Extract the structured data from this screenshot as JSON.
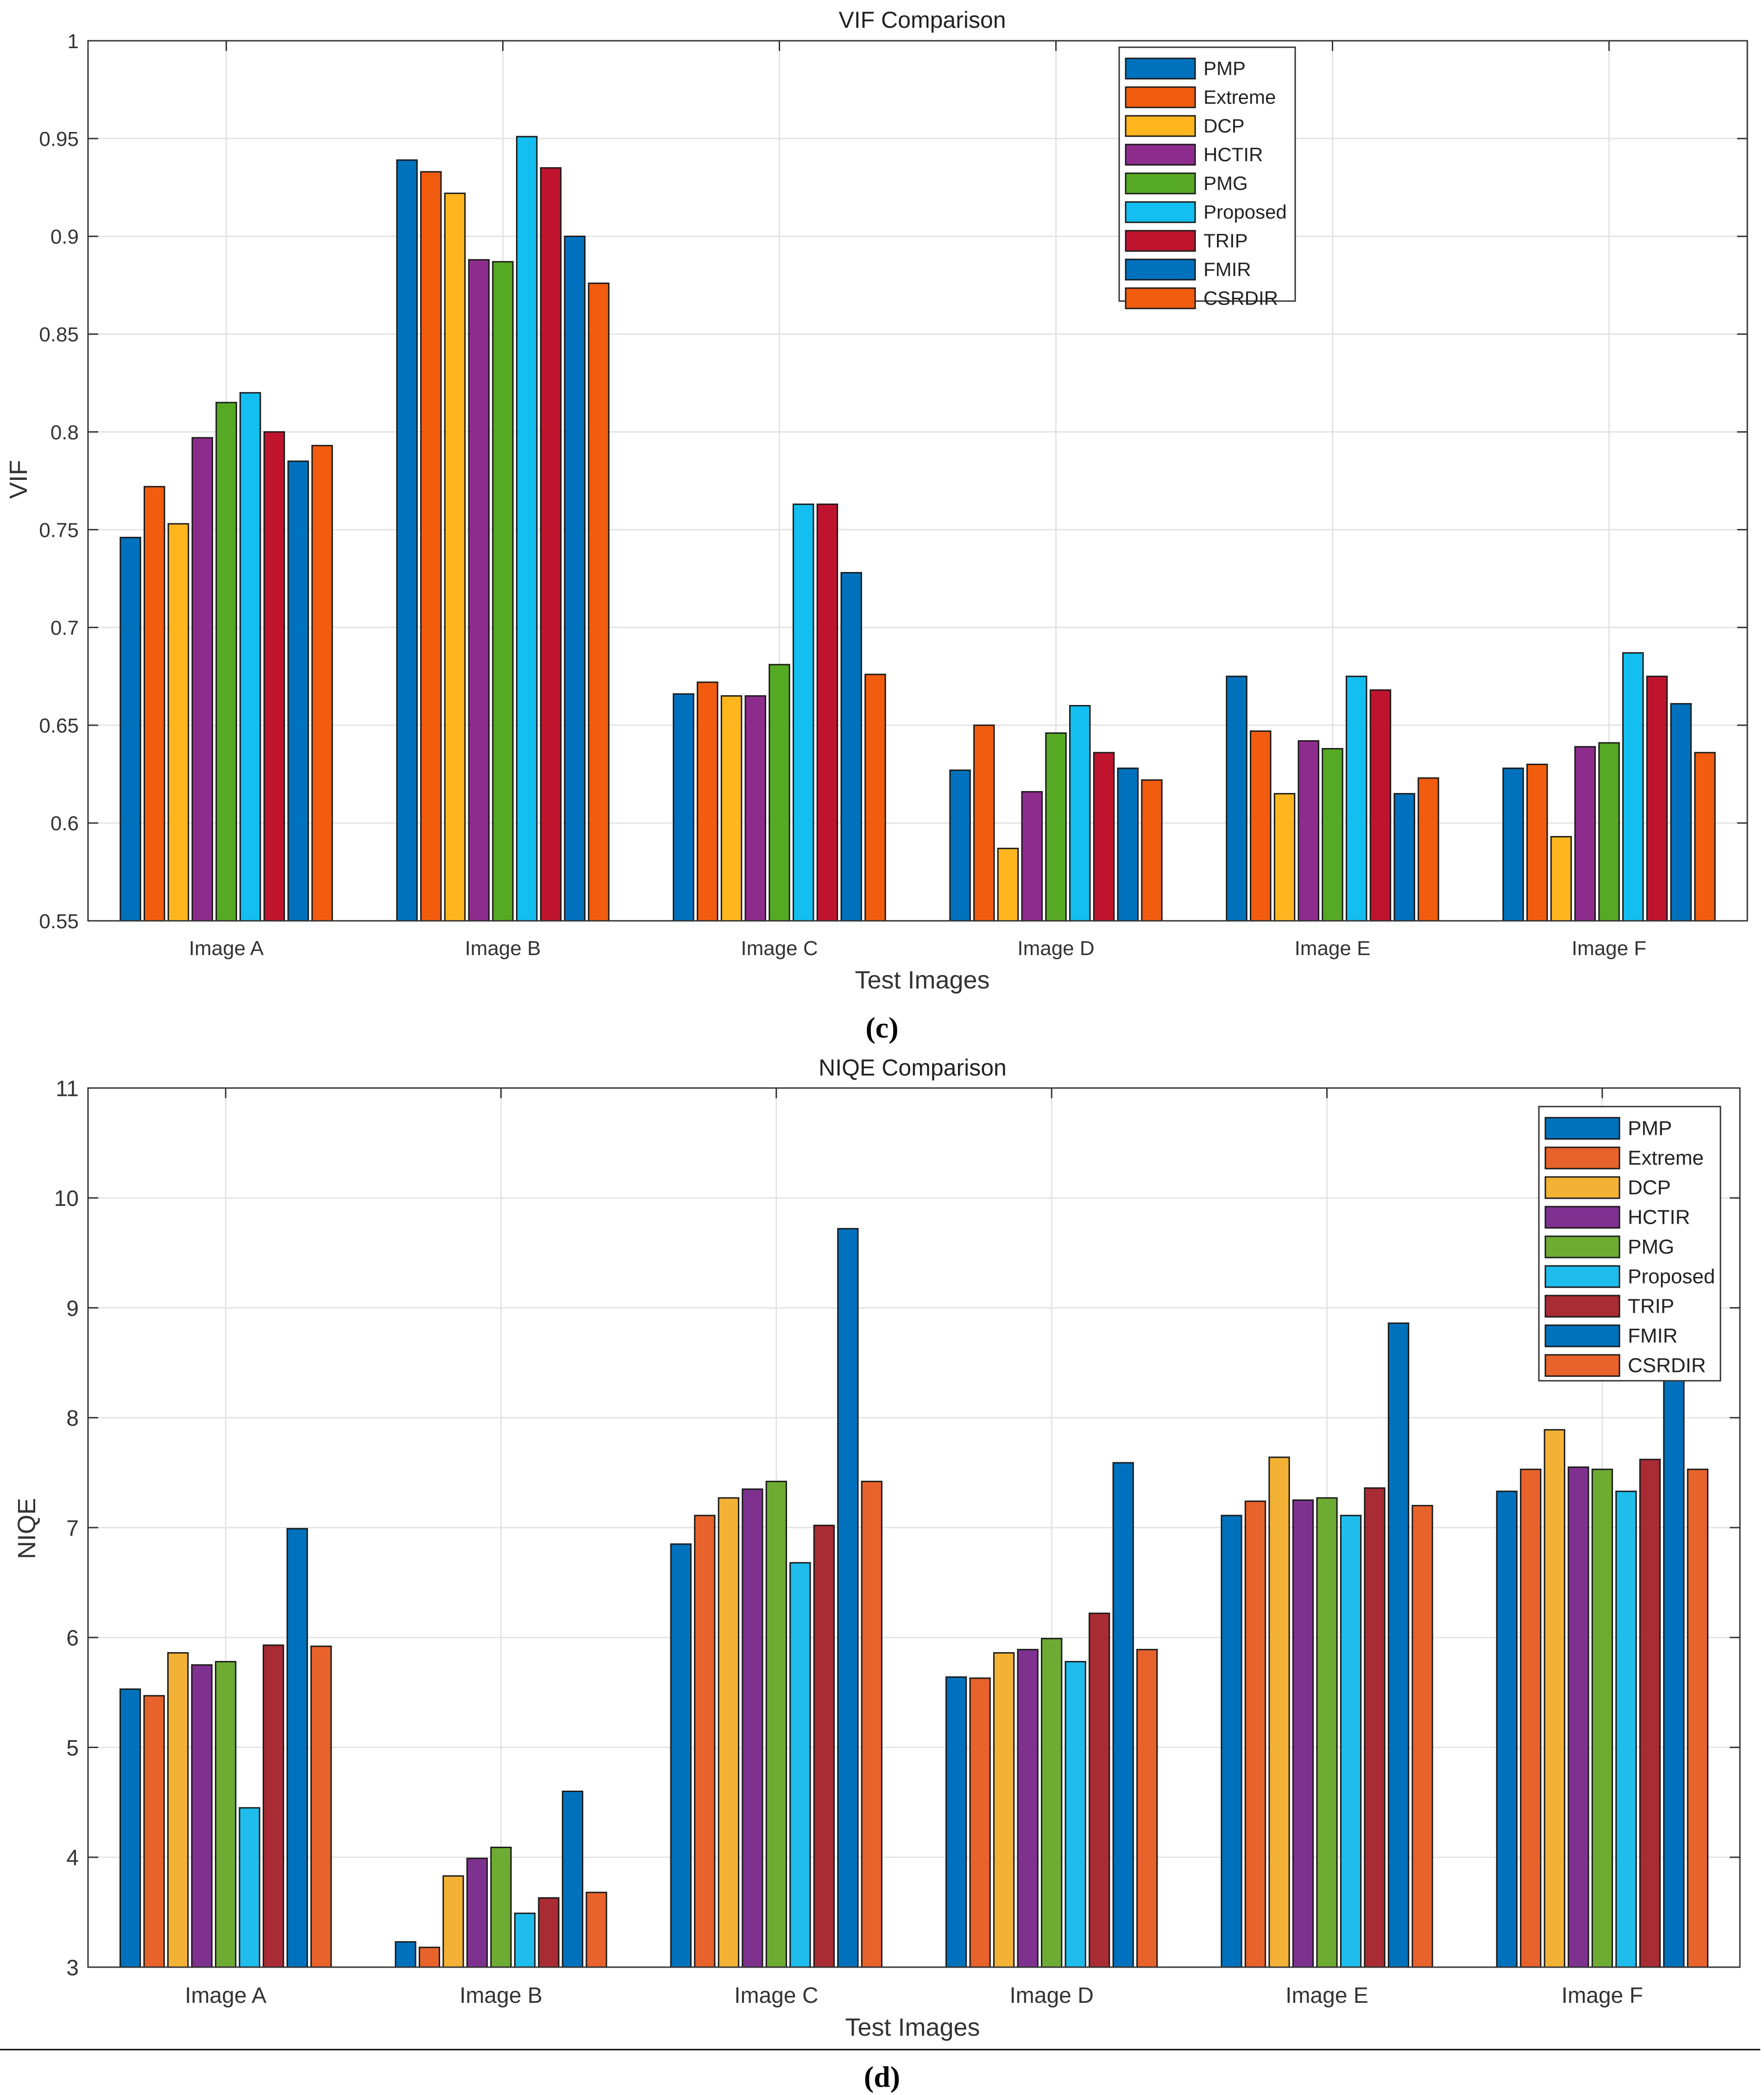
{
  "chart_data": [
    {
      "type": "bar",
      "title": "VIF Comparison",
      "xlabel": "Test Images",
      "ylabel": "VIF",
      "ylim": [
        0.55,
        1.0
      ],
      "yticks": [
        "0.55",
        "0.6",
        "0.65",
        "0.7",
        "0.75",
        "0.8",
        "0.85",
        "0.9",
        "0.95",
        "1"
      ],
      "grid": true,
      "legend_position": "top-center",
      "caption": "(c)",
      "categories": [
        "Image A",
        "Image B",
        "Image C",
        "Image D",
        "Image E",
        "Image F"
      ],
      "series": [
        {
          "name": "PMP",
          "color": "#0072BD",
          "values": [
            0.746,
            0.939,
            0.666,
            0.627,
            0.675,
            0.628
          ]
        },
        {
          "name": "Extreme",
          "color": "#F25C0F",
          "values": [
            0.772,
            0.933,
            0.672,
            0.65,
            0.647,
            0.63
          ]
        },
        {
          "name": "DCP",
          "color": "#FFB61E",
          "values": [
            0.753,
            0.922,
            0.665,
            0.587,
            0.615,
            0.593
          ]
        },
        {
          "name": "HCTIR",
          "color": "#8E2C8E",
          "values": [
            0.797,
            0.888,
            0.665,
            0.616,
            0.642,
            0.639
          ]
        },
        {
          "name": "PMG",
          "color": "#56AA23",
          "values": [
            0.815,
            0.887,
            0.681,
            0.646,
            0.638,
            0.641
          ]
        },
        {
          "name": "Proposed",
          "color": "#13BEF0",
          "values": [
            0.82,
            0.951,
            0.763,
            0.66,
            0.675,
            0.687
          ]
        },
        {
          "name": "TRIP",
          "color": "#C0142E",
          "values": [
            0.8,
            0.935,
            0.763,
            0.636,
            0.668,
            0.675
          ]
        },
        {
          "name": "FMIR",
          "color": "#0072BD",
          "values": [
            0.785,
            0.9,
            0.728,
            0.628,
            0.615,
            0.661
          ]
        },
        {
          "name": "CSRDIR",
          "color": "#F25C0F",
          "values": [
            0.793,
            0.876,
            0.676,
            0.622,
            0.623,
            0.636
          ]
        }
      ]
    },
    {
      "type": "bar",
      "title": "NIQE Comparison",
      "xlabel": "Test Images",
      "ylabel": "NIQE",
      "ylim": [
        3,
        11
      ],
      "yticks": [
        "3",
        "4",
        "5",
        "6",
        "7",
        "8",
        "9",
        "10",
        "11"
      ],
      "grid": true,
      "legend_position": "top-right",
      "caption": "(d)",
      "categories": [
        "Image A",
        "Image B",
        "Image C",
        "Image D",
        "Image E",
        "Image F"
      ],
      "series": [
        {
          "name": "PMP",
          "color": "#0072BD",
          "values": [
            5.53,
            3.23,
            6.85,
            5.64,
            7.11,
            7.33
          ]
        },
        {
          "name": "Extreme",
          "color": "#E8622B",
          "values": [
            5.47,
            3.18,
            7.11,
            5.63,
            7.24,
            7.53
          ]
        },
        {
          "name": "DCP",
          "color": "#F3B235",
          "values": [
            5.86,
            3.83,
            7.27,
            5.86,
            7.64,
            7.89
          ]
        },
        {
          "name": "HCTIR",
          "color": "#7E318E",
          "values": [
            5.75,
            3.99,
            7.35,
            5.89,
            7.25,
            7.55
          ]
        },
        {
          "name": "PMG",
          "color": "#6EAB33",
          "values": [
            5.78,
            4.09,
            7.42,
            5.99,
            7.27,
            7.53
          ]
        },
        {
          "name": "Proposed",
          "color": "#1EBDEB",
          "values": [
            4.45,
            3.49,
            6.68,
            5.78,
            7.11,
            7.33
          ]
        },
        {
          "name": "TRIP",
          "color": "#A92B33",
          "values": [
            5.93,
            3.63,
            7.02,
            6.22,
            7.36,
            7.62
          ]
        },
        {
          "name": "FMIR",
          "color": "#0072BD",
          "values": [
            6.99,
            4.6,
            9.72,
            7.59,
            8.86,
            8.55
          ]
        },
        {
          "name": "CSRDIR",
          "color": "#E8622B",
          "values": [
            5.92,
            3.68,
            7.42,
            5.89,
            7.2,
            7.53
          ]
        }
      ]
    }
  ]
}
